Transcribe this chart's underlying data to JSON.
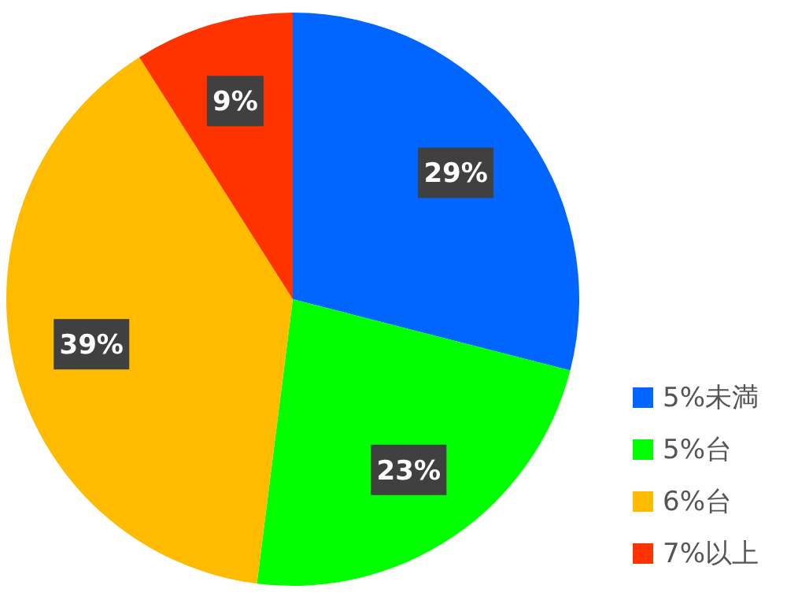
{
  "chart_data": {
    "type": "pie",
    "categories": [
      "5%未満",
      "5%台",
      "6%台",
      "7%以上"
    ],
    "values": [
      29,
      23,
      39,
      9
    ],
    "colors": [
      "#0066ff",
      "#00ff00",
      "#ffbb00",
      "#ff3300"
    ],
    "value_labels": [
      "29%",
      "23%",
      "39%",
      "9%"
    ],
    "legend": "bottom right"
  }
}
